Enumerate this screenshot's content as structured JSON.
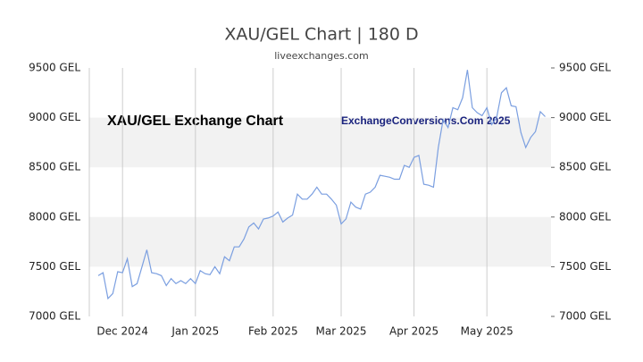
{
  "chart_data": {
    "type": "line",
    "title": "XAU/GEL Chart | 180 D",
    "subtitle": "liveexchanges.com",
    "annotations": [
      "XAU/GEL Exchange Chart",
      "ExchangeConversions.Com 2025"
    ],
    "categories": [
      null,
      null,
      null,
      null,
      null,
      "Dec 2024",
      null,
      null,
      null,
      null,
      null,
      null,
      null,
      null,
      null,
      null,
      null,
      null,
      null,
      null,
      "Jan 2025",
      null,
      null,
      null,
      null,
      null,
      null,
      null,
      null,
      null,
      null,
      null,
      null,
      null,
      null,
      null,
      "Feb 2025",
      null,
      null,
      null,
      null,
      null,
      null,
      null,
      null,
      null,
      null,
      null,
      null,
      null,
      "Mar 2025",
      null,
      null,
      null,
      null,
      null,
      null,
      null,
      null,
      null,
      null,
      null,
      null,
      null,
      null,
      "Apr 2025",
      null,
      null,
      null,
      null,
      null,
      null,
      null,
      null,
      null,
      null,
      null,
      null,
      null,
      null,
      "May 2025",
      null,
      null,
      null,
      null,
      null,
      null,
      null,
      null,
      null,
      null,
      null,
      null
    ],
    "values": [
      7410,
      7440,
      7180,
      7230,
      7450,
      7440,
      7580,
      7300,
      7330,
      7500,
      7670,
      7440,
      7430,
      7410,
      7310,
      7380,
      7330,
      7360,
      7330,
      7380,
      7330,
      7460,
      7430,
      7420,
      7500,
      7430,
      7600,
      7560,
      7700,
      7700,
      7780,
      7900,
      7940,
      7880,
      7980,
      7990,
      8010,
      8050,
      7950,
      7990,
      8020,
      8230,
      8180,
      8180,
      8230,
      8300,
      8230,
      8230,
      8180,
      8120,
      7930,
      7980,
      8150,
      8100,
      8080,
      8230,
      8250,
      8300,
      8420,
      8410,
      8400,
      8380,
      8380,
      8520,
      8500,
      8600,
      8620,
      8330,
      8320,
      8300,
      8700,
      8980,
      8900,
      9100,
      9080,
      9200,
      9480,
      9100,
      9050,
      9020,
      9100,
      8930,
      9000,
      9250,
      9300,
      9120,
      9110,
      8850,
      8700,
      8800,
      8860,
      9060,
      9010
    ],
    "color": "#7b9fe0",
    "ylim": [
      7000,
      9500
    ],
    "yticks": [
      {
        "value": 7000,
        "label": "7000 GEL"
      },
      {
        "value": 7500,
        "label": "7500 GEL"
      },
      {
        "value": 8000,
        "label": "8000 GEL"
      },
      {
        "value": 8500,
        "label": "8500 GEL"
      },
      {
        "value": 9000,
        "label": "9000 GEL"
      },
      {
        "value": 9500,
        "label": "9500 GEL"
      }
    ],
    "grid": true
  }
}
